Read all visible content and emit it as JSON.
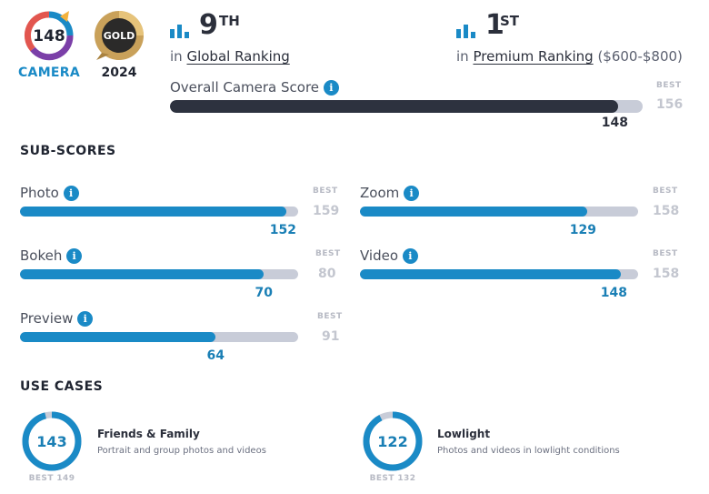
{
  "badges": {
    "camera_score": "148",
    "camera_label": "CAMERA",
    "gold_label": "GOLD",
    "year": "2024"
  },
  "rankings": {
    "global": {
      "position": "9",
      "suffix": "TH",
      "prefix": "in",
      "link": "Global Ranking"
    },
    "premium": {
      "position": "1",
      "suffix": "ST",
      "prefix": "in",
      "link": "Premium Ranking",
      "range": "($600-$800)"
    }
  },
  "overall": {
    "title": "Overall Camera Score",
    "info": "i",
    "best_label": "BEST",
    "best_value": "156",
    "score": "148",
    "fraction": 0.949
  },
  "subscores": {
    "title": "SUB-SCORES",
    "items": [
      {
        "label": "Photo",
        "score": "152",
        "best_label": "BEST",
        "best": "159",
        "fraction": 0.956
      },
      {
        "label": "Zoom",
        "score": "129",
        "best_label": "BEST",
        "best": "158",
        "fraction": 0.816
      },
      {
        "label": "Bokeh",
        "score": "70",
        "best_label": "BEST",
        "best": "80",
        "fraction": 0.875
      },
      {
        "label": "Video",
        "score": "148",
        "best_label": "BEST",
        "best": "158",
        "fraction": 0.937
      },
      {
        "label": "Preview",
        "score": "64",
        "best_label": "BEST",
        "best": "91",
        "fraction": 0.703
      }
    ]
  },
  "use_cases": {
    "title": "USE CASES",
    "items": [
      {
        "score": "143",
        "title": "Friends & Family",
        "desc": "Portrait and group photos and videos",
        "best": "BEST 149",
        "fraction": 0.96
      },
      {
        "score": "122",
        "title": "Lowlight",
        "desc": "Photos and videos in lowlight conditions",
        "best": "BEST 132",
        "fraction": 0.924
      }
    ]
  },
  "colors": {
    "accent": "#1a8ac6",
    "dark_bar": "#2d323f",
    "track": "#c8ccd8",
    "gold": "#c9a15a"
  }
}
